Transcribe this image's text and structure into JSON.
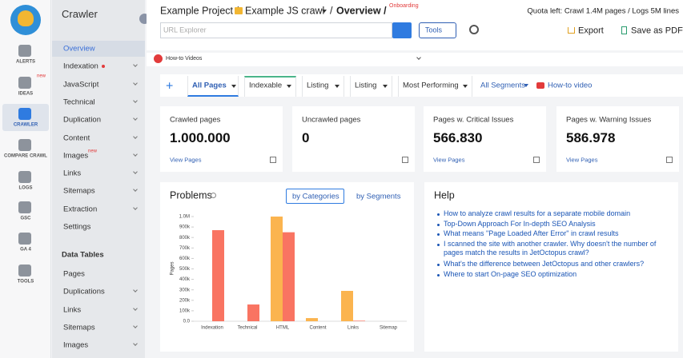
{
  "sidebar": {
    "icons": [
      {
        "label": "ALERTS"
      },
      {
        "label": "IDEAS",
        "badge": "new"
      },
      {
        "label": "CRAWLER",
        "active": true
      },
      {
        "label": "COMPARE CRAWL"
      },
      {
        "label": "LOGS"
      },
      {
        "label": "GSC"
      },
      {
        "label": "GA 4"
      },
      {
        "label": "TOOLS"
      }
    ]
  },
  "nav": {
    "title": "Crawler",
    "items": [
      {
        "label": "Overview",
        "active": true
      },
      {
        "label": "Indexation",
        "dot": true,
        "expandable": true
      },
      {
        "label": "JavaScript",
        "expandable": true
      },
      {
        "label": "Technical",
        "expandable": true
      },
      {
        "label": "Duplication",
        "expandable": true
      },
      {
        "label": "Content",
        "expandable": true
      },
      {
        "label": "Images",
        "badge": "new",
        "expandable": true
      },
      {
        "label": "Links",
        "expandable": true
      },
      {
        "label": "Sitemaps",
        "expandable": true
      },
      {
        "label": "Extraction",
        "expandable": true
      },
      {
        "label": "Settings"
      }
    ],
    "section": "Data Tables",
    "table_items": [
      {
        "label": "Pages"
      },
      {
        "label": "Duplications",
        "expandable": true
      },
      {
        "label": "Links",
        "expandable": true
      },
      {
        "label": "Sitemaps",
        "expandable": true
      },
      {
        "label": "Images",
        "expandable": true
      }
    ]
  },
  "header": {
    "project": "Example Project /",
    "crawl": "Example JS crawl",
    "sep": "/",
    "page": "Overview /",
    "onboarding": "Onboarding",
    "quota": "Quota left: Crawl 1.4M pages / Logs 5M lines",
    "search_placeholder": "URL Explorer",
    "tools": "Tools",
    "export": "Export",
    "pdf": "Save as PDF"
  },
  "howto_bar": "How-to Videos",
  "tabs": [
    "All Pages",
    "Indexable",
    "Listing",
    "Listing",
    "Most Performing",
    "All Segments",
    "How-to video"
  ],
  "cards": [
    {
      "label": "Crawled pages",
      "value": "1.000.000",
      "link": "View Pages"
    },
    {
      "label": "Uncrawled pages",
      "value": "0"
    },
    {
      "label": "Pages w. Critical Issues",
      "value": "566.830",
      "link": "View Pages"
    },
    {
      "label": "Pages w. Warning Issues",
      "value": "586.978",
      "link": "View Pages"
    }
  ],
  "problems": {
    "by_categories": "by Categories",
    "by_segments": "by Segments"
  },
  "chart_data": {
    "type": "bar",
    "title": "Problems",
    "y_label": "Pages",
    "categories": [
      "Indexation",
      "Technical",
      "HTML",
      "Content",
      "Links",
      "Sitemap"
    ],
    "series": [
      {
        "color": "#fbb44f",
        "values": [
          null,
          null,
          1000000,
          30000,
          290000,
          null
        ]
      },
      {
        "color": "#f97462",
        "values": [
          870000,
          160000,
          850000,
          null,
          5000,
          null
        ]
      }
    ],
    "ylim": [
      0,
      1000000
    ],
    "yticks": [
      {
        "value": 0,
        "label": "0.0"
      },
      {
        "value": 100000,
        "label": "100k"
      },
      {
        "value": 200000,
        "label": "200k"
      },
      {
        "value": 300000,
        "label": "300k"
      },
      {
        "value": 400000,
        "label": "400k"
      },
      {
        "value": 500000,
        "label": "500k"
      },
      {
        "value": 600000,
        "label": "600k"
      },
      {
        "value": 700000,
        "label": "700k"
      },
      {
        "value": 800000,
        "label": "800k"
      },
      {
        "value": 900000,
        "label": "900k"
      },
      {
        "value": 1000000,
        "label": "1.0M"
      }
    ]
  },
  "help": {
    "title": "Help",
    "links": [
      "How to analyze crawl results for a separate mobile domain",
      "Top-Down Approach For In-depth SEO Analysis",
      "What means \"Page Loaded After Error\" in crawl results",
      "I scanned the site with another crawler. Why doesn't the number of pages match the results in JetOctopus crawl?",
      "What's the difference between JetOctopus and other crawlers?",
      "Where to start On-page SEO optimization"
    ]
  }
}
